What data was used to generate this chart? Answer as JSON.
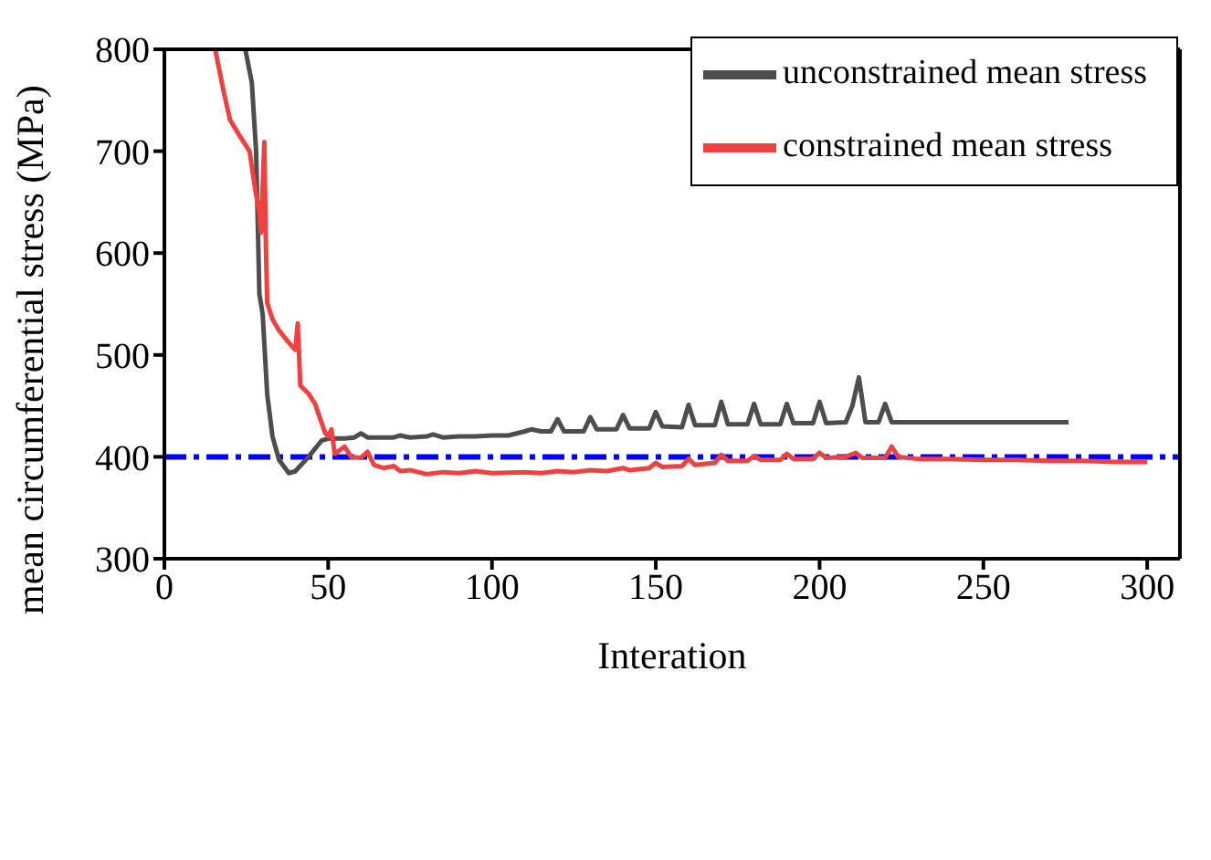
{
  "chart_data": {
    "type": "line",
    "xlabel": "Interation",
    "ylabel": "mean circumferential stress (MPa)",
    "xlim": [
      0,
      310
    ],
    "ylim": [
      300,
      800
    ],
    "xticks": [
      0,
      50,
      100,
      150,
      200,
      250,
      300
    ],
    "yticks": [
      300,
      400,
      500,
      600,
      700,
      800
    ],
    "grid": false,
    "legend": "top right",
    "marker": "none",
    "line_style": "solid",
    "ref_lines": [
      {
        "axis": "y",
        "value": 400,
        "color": "#0000ff",
        "line_style": "dashdot"
      }
    ],
    "series": [
      {
        "name": "unconstrained mean stress",
        "color": "#4d4d4d",
        "x": [
          24.7,
          26.7,
          28,
          29,
          30,
          31.4,
          33,
          35,
          38,
          40,
          44,
          48,
          50,
          55,
          58,
          60,
          62,
          70,
          72,
          75,
          80,
          82,
          85,
          90,
          95,
          100,
          105,
          110,
          112,
          115,
          118,
          120,
          122,
          128,
          130,
          132,
          138,
          140,
          142,
          148,
          150,
          152,
          158,
          160,
          162,
          168,
          170,
          172,
          178,
          180,
          182,
          188,
          190,
          192,
          198,
          200,
          202,
          208,
          210,
          212,
          214,
          218,
          220,
          222,
          276
        ],
        "values": [
          800,
          767,
          700,
          560,
          540,
          461,
          420,
          397,
          384,
          386,
          400,
          416,
          418,
          418,
          419,
          423,
          419,
          419,
          421,
          419,
          420,
          422,
          419,
          420,
          420,
          421,
          421,
          425,
          427,
          425,
          425,
          437,
          425,
          425,
          439,
          427,
          427,
          441,
          428,
          428,
          444,
          430,
          429,
          451,
          431,
          431,
          454,
          432,
          432,
          452,
          432,
          432,
          452,
          433,
          433,
          454,
          433,
          434,
          450,
          478,
          434,
          434,
          452,
          434,
          434
        ]
      },
      {
        "name": "constrained mean stress",
        "color": "#f04040",
        "x": [
          15.5,
          18,
          20,
          23,
          26,
          27.7,
          29,
          29.5,
          30.5,
          31,
          31.4,
          33,
          35,
          38,
          40,
          40.7,
          41.5,
          44,
          46,
          49,
          50,
          51,
          52,
          55,
          57,
          60,
          62,
          64,
          67,
          70,
          72,
          75,
          80,
          85,
          90,
          95,
          100,
          110,
          115,
          120,
          125,
          130,
          135,
          140,
          142,
          148,
          150,
          152,
          158,
          160,
          162,
          168,
          170,
          172,
          178,
          180,
          182,
          188,
          190,
          192,
          198,
          200,
          202,
          208,
          211,
          213,
          220,
          222,
          224,
          230,
          240,
          250,
          260,
          270,
          280,
          290,
          300
        ],
        "values": [
          800,
          760,
          731,
          715,
          700,
          663,
          640,
          620,
          709,
          605,
          551,
          535,
          524,
          512,
          505,
          531,
          470,
          462,
          452,
          424,
          420,
          427,
          403,
          410,
          400,
          399,
          405,
          392,
          389,
          391,
          386,
          387,
          383,
          385,
          384,
          386,
          384,
          385,
          384,
          386,
          385,
          387,
          386,
          389,
          387,
          389,
          394,
          390,
          391,
          398,
          392,
          394,
          402,
          396,
          396,
          401,
          397,
          397,
          403,
          398,
          398,
          404,
          399,
          400,
          404,
          399,
          399,
          410,
          400,
          398,
          398,
          397,
          397,
          396,
          396,
          395,
          395
        ]
      }
    ]
  }
}
